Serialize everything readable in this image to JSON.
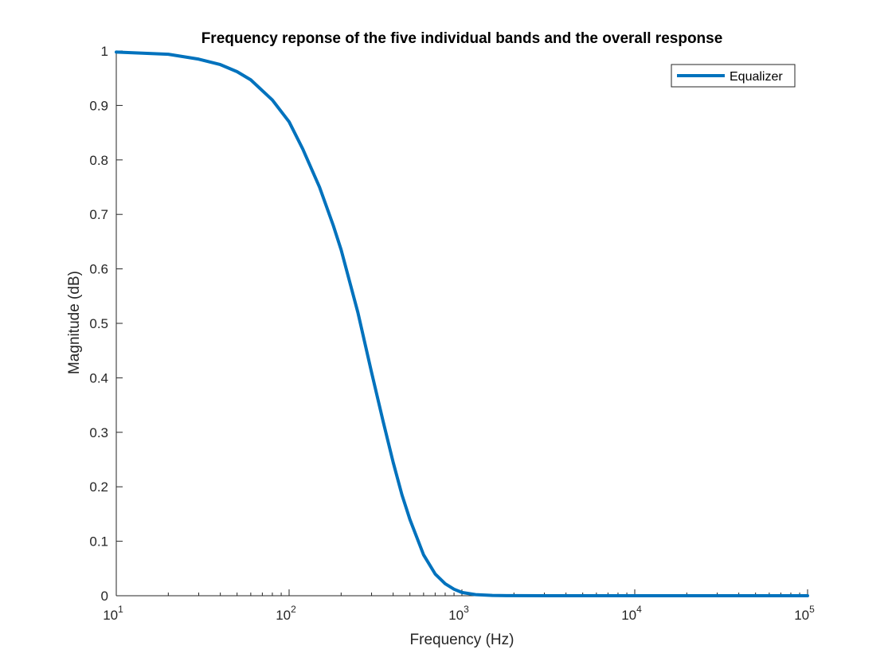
{
  "chart_data": {
    "type": "line",
    "title": "Frequency reponse of the five individual bands and the overall response",
    "xlabel": "Frequency (Hz)",
    "ylabel": "Magnitude (dB)",
    "xscale": "log",
    "xlim": [
      10,
      100000
    ],
    "ylim": [
      0,
      1
    ],
    "x_tick_labels": [
      {
        "base": "10",
        "exp": "1"
      },
      {
        "base": "10",
        "exp": "2"
      },
      {
        "base": "10",
        "exp": "3"
      },
      {
        "base": "10",
        "exp": "4"
      },
      {
        "base": "10",
        "exp": "5"
      }
    ],
    "x_ticks": [
      10,
      100,
      1000,
      10000,
      100000
    ],
    "y_ticks": [
      0,
      0.1,
      0.2,
      0.3,
      0.4,
      0.5,
      0.6,
      0.7,
      0.8,
      0.9,
      1
    ],
    "y_tick_labels": [
      "0",
      "0.1",
      "0.2",
      "0.3",
      "0.4",
      "0.5",
      "0.6",
      "0.7",
      "0.8",
      "0.9",
      "1"
    ],
    "grid": false,
    "legend": {
      "position": "top-right",
      "entries": [
        "Equalizer"
      ]
    },
    "series": [
      {
        "name": "Equalizer",
        "color": "#0072BD",
        "x": [
          10,
          20,
          30,
          40,
          50,
          60,
          80,
          100,
          120,
          150,
          180,
          200,
          250,
          300,
          350,
          400,
          450,
          500,
          600,
          700,
          800,
          900,
          1000,
          1200,
          1500,
          2000,
          3000,
          5000,
          10000,
          20000,
          50000,
          100000
        ],
        "y": [
          0.998,
          0.994,
          0.985,
          0.975,
          0.962,
          0.947,
          0.91,
          0.87,
          0.82,
          0.75,
          0.68,
          0.635,
          0.52,
          0.41,
          0.32,
          0.245,
          0.185,
          0.14,
          0.075,
          0.04,
          0.022,
          0.012,
          0.006,
          0.002,
          0.0005,
          0.0001,
          0,
          0,
          0,
          0,
          0,
          0
        ]
      }
    ]
  }
}
